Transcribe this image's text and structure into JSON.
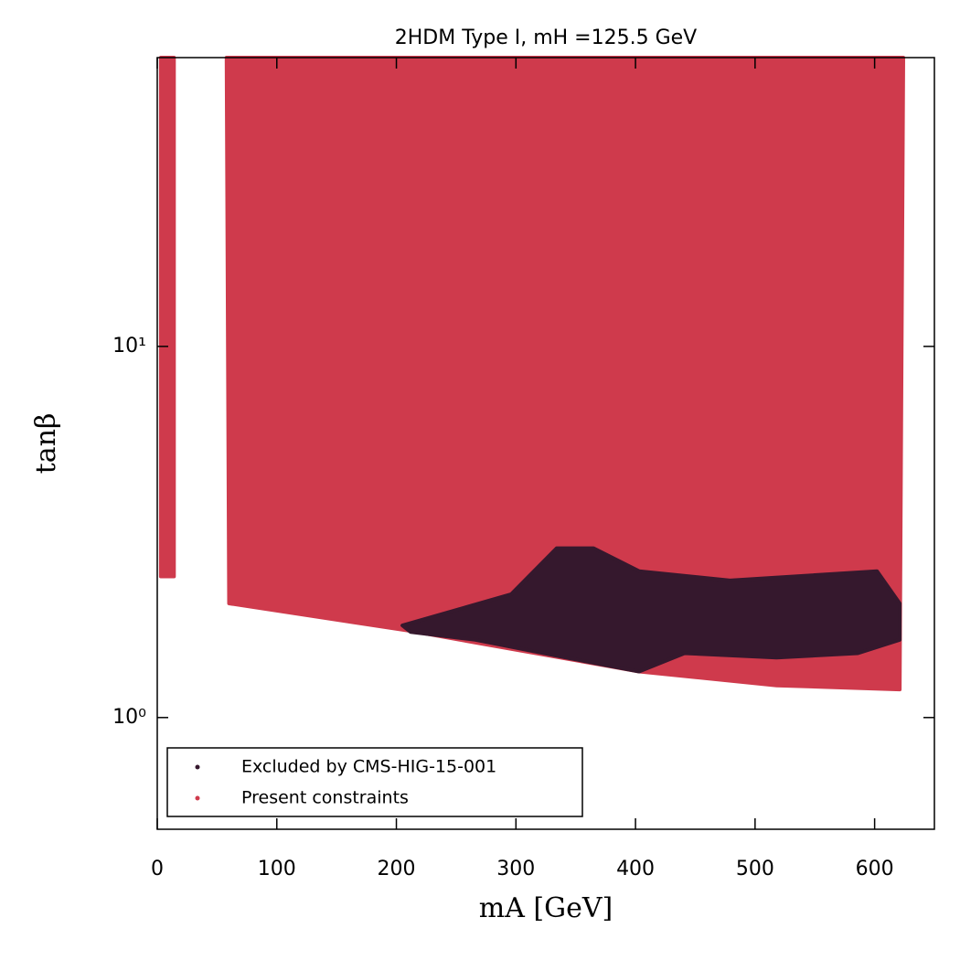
{
  "chart_data": {
    "type": "scatter",
    "title": "2HDM Type I, mH =125.5 GeV",
    "x_label": "mA [GeV]",
    "y_label": "tanβ",
    "xlim": [
      0,
      650
    ],
    "xticks": [
      0,
      100,
      200,
      300,
      400,
      500,
      600
    ],
    "ylim": [
      0.5,
      60
    ],
    "yscale": "log",
    "yticks": [
      {
        "value": 1,
        "label": "10⁰"
      },
      {
        "value": 10,
        "label": "10¹"
      }
    ],
    "legend": "lower left",
    "series": [
      {
        "name": "Present constraints",
        "color": "#cf3a4c",
        "x": [
          58,
          624,
          621,
          518,
          403,
          296,
          212,
          60,
          null,
          3,
          14,
          14,
          3
        ],
        "y": [
          60,
          60,
          1.19,
          1.22,
          1.33,
          1.53,
          1.71,
          2.03,
          null,
          2.4,
          2.4,
          60,
          60
        ]
      },
      {
        "name": "Excluded by CMS-HIG-15-001",
        "color": "#35182d",
        "x": [
          205,
          296,
          334,
          365,
          403,
          479,
          602,
          621,
          621,
          586,
          518,
          441,
          403,
          342,
          266,
          212
        ],
        "y": [
          1.77,
          2.15,
          2.86,
          2.86,
          2.48,
          2.34,
          2.48,
          2.03,
          1.62,
          1.49,
          1.45,
          1.49,
          1.33,
          1.45,
          1.62,
          1.7
        ]
      }
    ]
  }
}
